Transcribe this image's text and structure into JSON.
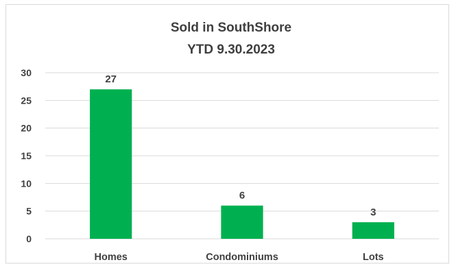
{
  "chart_data": {
    "type": "bar",
    "title_lines": [
      "Sold in SouthShore",
      "YTD 9.30.2023"
    ],
    "categories": [
      "Homes",
      "Condominiums",
      "Lots"
    ],
    "values": [
      27,
      6,
      3
    ],
    "data_labels": [
      "27",
      "6",
      "3"
    ],
    "y_ticks": [
      0,
      5,
      10,
      15,
      20,
      25,
      30
    ],
    "ylim": [
      0,
      30
    ],
    "grid": true,
    "legend": "none",
    "bar_color": "#00b050",
    "grid_color": "#d9d9d9"
  }
}
